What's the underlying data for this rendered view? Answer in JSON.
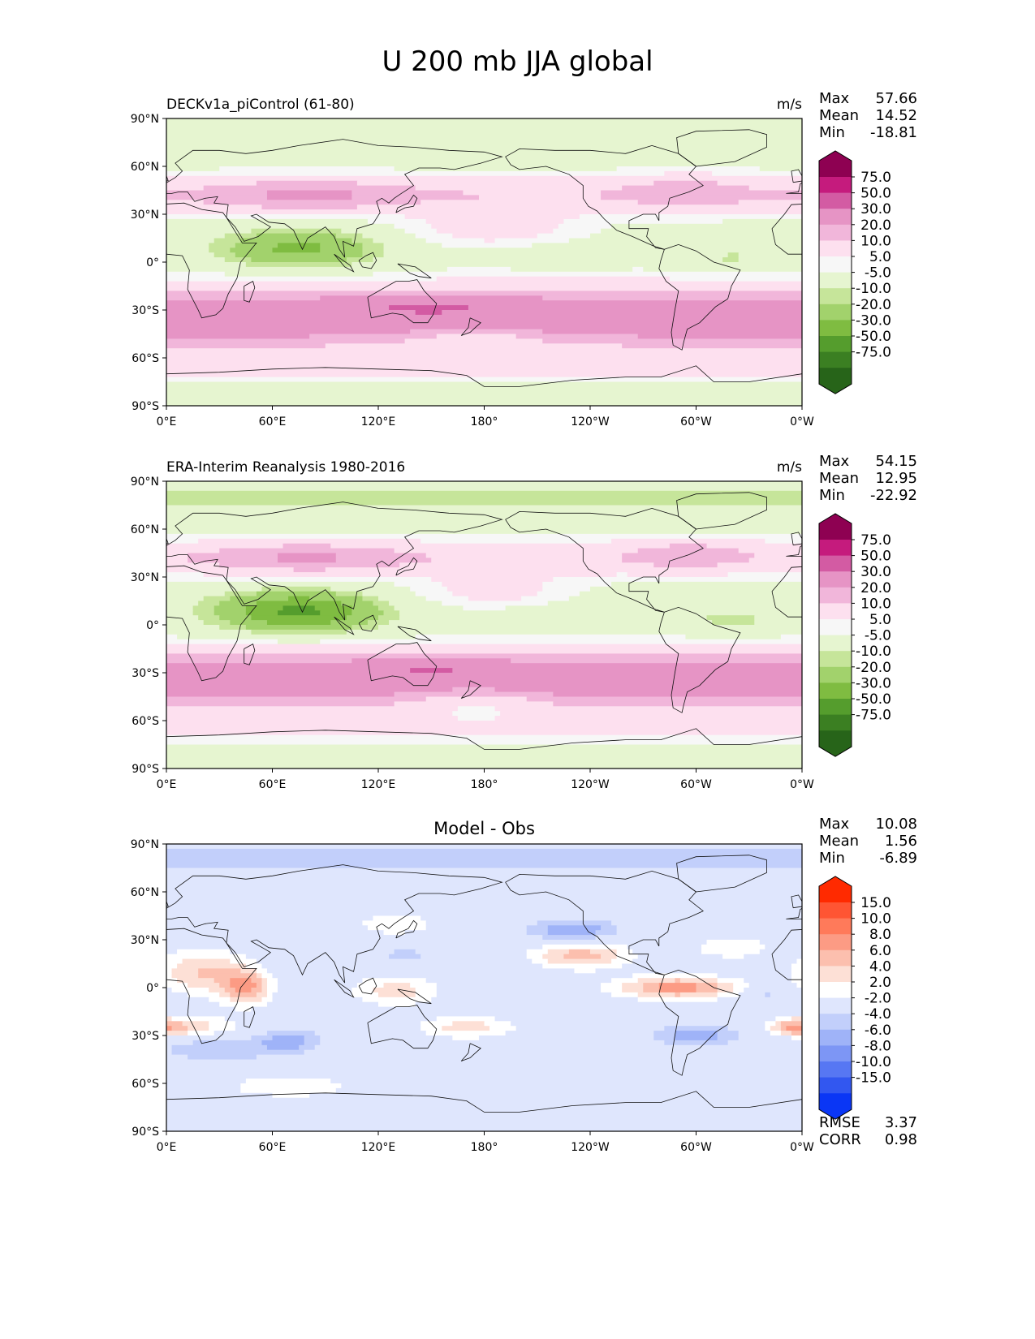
{
  "title": "U 200 mb JJA global",
  "axes": {
    "lat_labels": [
      "90°N",
      "60°N",
      "30°N",
      "0°",
      "30°S",
      "60°S",
      "90°S"
    ],
    "lon_labels": [
      "0°E",
      "60°E",
      "120°E",
      "180°",
      "120°W",
      "60°W",
      "0°W"
    ]
  },
  "panels": [
    {
      "title_left": "DECKv1a_piControl (61-80)",
      "title_center": "",
      "units": "m/s",
      "stats": [
        {
          "label": "Max",
          "value": "57.66"
        },
        {
          "label": "Mean",
          "value": "14.52"
        },
        {
          "label": "Min",
          "value": "-18.81"
        }
      ],
      "colorbar": "wind",
      "field": "model"
    },
    {
      "title_left": "ERA-Interim Reanalysis 1980-2016",
      "title_center": "",
      "units": "m/s",
      "stats": [
        {
          "label": "Max",
          "value": "54.15"
        },
        {
          "label": "Mean",
          "value": "12.95"
        },
        {
          "label": "Min",
          "value": "-22.92"
        }
      ],
      "colorbar": "wind",
      "field": "obs"
    },
    {
      "title_left": "",
      "title_center": "Model - Obs",
      "units": "",
      "stats": [
        {
          "label": "Max",
          "value": "10.08"
        },
        {
          "label": "Mean",
          "value": "1.56"
        },
        {
          "label": "Min",
          "value": "-6.89"
        }
      ],
      "extra_stats": [
        {
          "label": "RMSE",
          "value": "3.37"
        },
        {
          "label": "CORR",
          "value": "0.98"
        }
      ],
      "colorbar": "diff",
      "field": "diff"
    }
  ],
  "colorbars": {
    "wind": {
      "labels": [
        "75.0",
        "50.0",
        "30.0",
        "20.0",
        "10.0",
        "5.0",
        "-5.0",
        "-10.0",
        "-20.0",
        "-30.0",
        "-50.0",
        "-75.0"
      ],
      "colors": [
        "#8e0152",
        "#c51b7d",
        "#d35ba3",
        "#e694c5",
        "#f1b6da",
        "#fde0ef",
        "#f7f7f7",
        "#e6f5d0",
        "#c6e59a",
        "#a2d26c",
        "#7fbc41",
        "#559d2d",
        "#3b7f22",
        "#276419"
      ]
    },
    "diff": {
      "labels": [
        "15.0",
        "10.0",
        "8.0",
        "6.0",
        "4.0",
        "2.0",
        "-2.0",
        "-4.0",
        "-6.0",
        "-8.0",
        "-10.0",
        "-15.0"
      ],
      "colors": [
        "#ff2a00",
        "#ff5533",
        "#ff7a5a",
        "#fc9b84",
        "#fcbfae",
        "#fde0d6",
        "#ffffff",
        "#dfe6fd",
        "#c2cffb",
        "#9fb3f8",
        "#7d96f5",
        "#5777f3",
        "#3257f0",
        "#0a36f5"
      ]
    }
  }
}
